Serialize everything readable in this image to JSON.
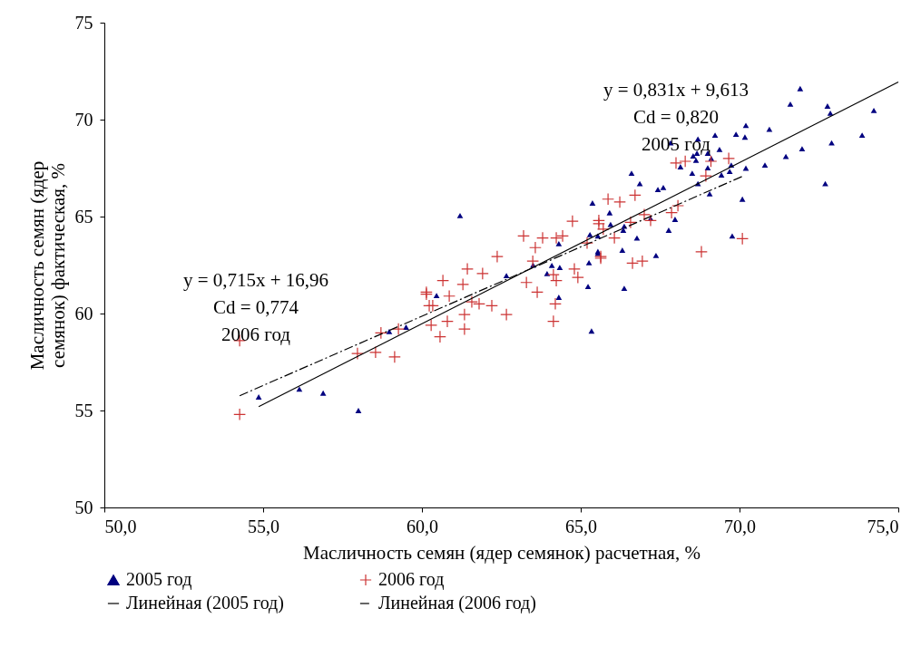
{
  "chart_data": {
    "type": "scatter",
    "xlabel": "Масличность семян (ядер семянок) расчетная, %",
    "ylabel": "Масличность семян (ядер семянок) фактическая, %",
    "xlim": [
      50,
      75
    ],
    "xticks": [
      {
        "value": 50,
        "label": "50,0"
      },
      {
        "value": 55,
        "label": "55,0"
      },
      {
        "value": 60,
        "label": "60,0"
      },
      {
        "value": 65,
        "label": "65,0"
      },
      {
        "value": 70,
        "label": "70,0"
      },
      {
        "value": 75,
        "label": "75,0"
      }
    ],
    "ylim": [
      50,
      75
    ],
    "yticks": [
      50,
      55,
      60,
      65,
      70,
      75
    ],
    "grid": false,
    "legend": "bottom",
    "annotations": [
      "y = 0,831x + 9,613\nCd = 0,820\n2005 год",
      "y = 0,715x + 16,96\nCd = 0,774\n2006 год"
    ],
    "series": [
      {
        "name": "2005 год",
        "marker": "triangle",
        "color": "#000080",
        "x": [
          54.86,
          56.14,
          56.89,
          58.0,
          58.97,
          59.5,
          60.46,
          61.2,
          62.66,
          63.5,
          64.09,
          63.94,
          64.34,
          64.31,
          64.31,
          65.26,
          65.23,
          65.34,
          65.29,
          65.54,
          65.54,
          65.37,
          71.91,
          71.6,
          72.77,
          72.86,
          74.23,
          73.86,
          72.9,
          71.97,
          71.46,
          70.8,
          72.7,
          70.94,
          70.2,
          70.17,
          69.89,
          70.2,
          70.09,
          69.77,
          69.23,
          69.37,
          68.69,
          67.83,
          68.54,
          68.66,
          69.0,
          69.11,
          68.63,
          68.14,
          68.51,
          69.0,
          69.43,
          69.69,
          69.74,
          68.69,
          69.06,
          66.6,
          66.86,
          67.43,
          67.6,
          67.97,
          67.77,
          67.37,
          66.77,
          66.34,
          65.91,
          65.94,
          66.37,
          67.2,
          66.31,
          65.54,
          66.37
        ],
        "values": [
          55.7,
          56.1,
          55.9,
          55.0,
          59.07,
          59.3,
          60.93,
          65.05,
          61.96,
          62.5,
          62.48,
          62.06,
          62.38,
          63.6,
          60.84,
          62.62,
          61.4,
          59.1,
          64.07,
          64.0,
          63.2,
          65.7,
          71.6,
          70.8,
          70.7,
          70.33,
          70.47,
          69.2,
          68.8,
          68.5,
          68.1,
          67.66,
          66.7,
          69.5,
          69.7,
          69.1,
          69.25,
          67.5,
          65.9,
          64.0,
          69.2,
          68.46,
          69.0,
          68.8,
          68.13,
          68.27,
          68.27,
          68.0,
          67.9,
          67.57,
          67.24,
          67.52,
          67.15,
          67.33,
          67.66,
          66.7,
          66.17,
          67.24,
          66.7,
          66.4,
          66.5,
          64.86,
          64.3,
          63.0,
          63.9,
          64.3,
          65.2,
          64.6,
          64.5,
          64.9,
          63.27,
          63.1,
          61.3
        ]
      },
      {
        "name": "2006 год",
        "marker": "cross",
        "color": "#cc3333",
        "x": [
          54.26,
          54.26,
          57.97,
          58.54,
          59.14,
          58.71,
          59.26,
          60.14,
          60.23,
          60.29,
          60.57,
          63.2,
          63.8,
          64.23,
          64.43,
          64.74,
          63.57,
          63.49,
          63.29,
          63.63,
          64.14,
          64.23,
          64.2,
          64.14,
          64.8,
          64.91,
          65.2,
          65.63,
          65.57,
          62.37,
          61.43,
          61.91,
          60.66,
          61.29,
          60.14,
          60.86,
          60.34,
          61.57,
          61.8,
          62.2,
          62.66,
          61.34,
          60.8,
          61.34,
          68.0,
          68.29,
          69.1,
          69.66,
          68.94,
          68.06,
          67.86,
          67.2,
          66.71,
          66.23,
          65.86,
          66.57,
          67.0,
          65.57,
          65.71,
          66.06,
          70.09,
          68.8,
          66.63,
          66.94,
          65.63
        ],
        "values": [
          58.6,
          54.8,
          57.94,
          58.0,
          57.76,
          59.0,
          59.2,
          61.0,
          60.4,
          59.4,
          58.8,
          64.0,
          63.9,
          63.9,
          64.0,
          64.76,
          63.4,
          62.7,
          61.6,
          61.1,
          62.0,
          61.7,
          60.5,
          59.6,
          62.3,
          61.86,
          63.64,
          62.94,
          64.63,
          62.94,
          62.3,
          62.06,
          61.7,
          61.5,
          61.1,
          60.9,
          60.4,
          60.6,
          60.5,
          60.4,
          59.95,
          59.95,
          59.6,
          59.2,
          67.76,
          67.85,
          67.85,
          68.0,
          67.1,
          65.56,
          65.2,
          64.8,
          66.1,
          65.75,
          65.9,
          64.7,
          65.1,
          64.8,
          64.35,
          63.9,
          63.86,
          63.18,
          62.6,
          62.7,
          62.85
        ]
      },
      {
        "name": "Линейная (2005 год)",
        "type": "line",
        "line_style": "solid",
        "color": "#000000",
        "x": [
          54.86,
          75
        ],
        "values": [
          55.2,
          71.94
        ]
      },
      {
        "name": "Линейная (2006 год)",
        "type": "line",
        "line_style": "dashed",
        "color": "#000000",
        "x": [
          54.26,
          70.1
        ],
        "values": [
          55.76,
          67.08
        ]
      }
    ]
  }
}
